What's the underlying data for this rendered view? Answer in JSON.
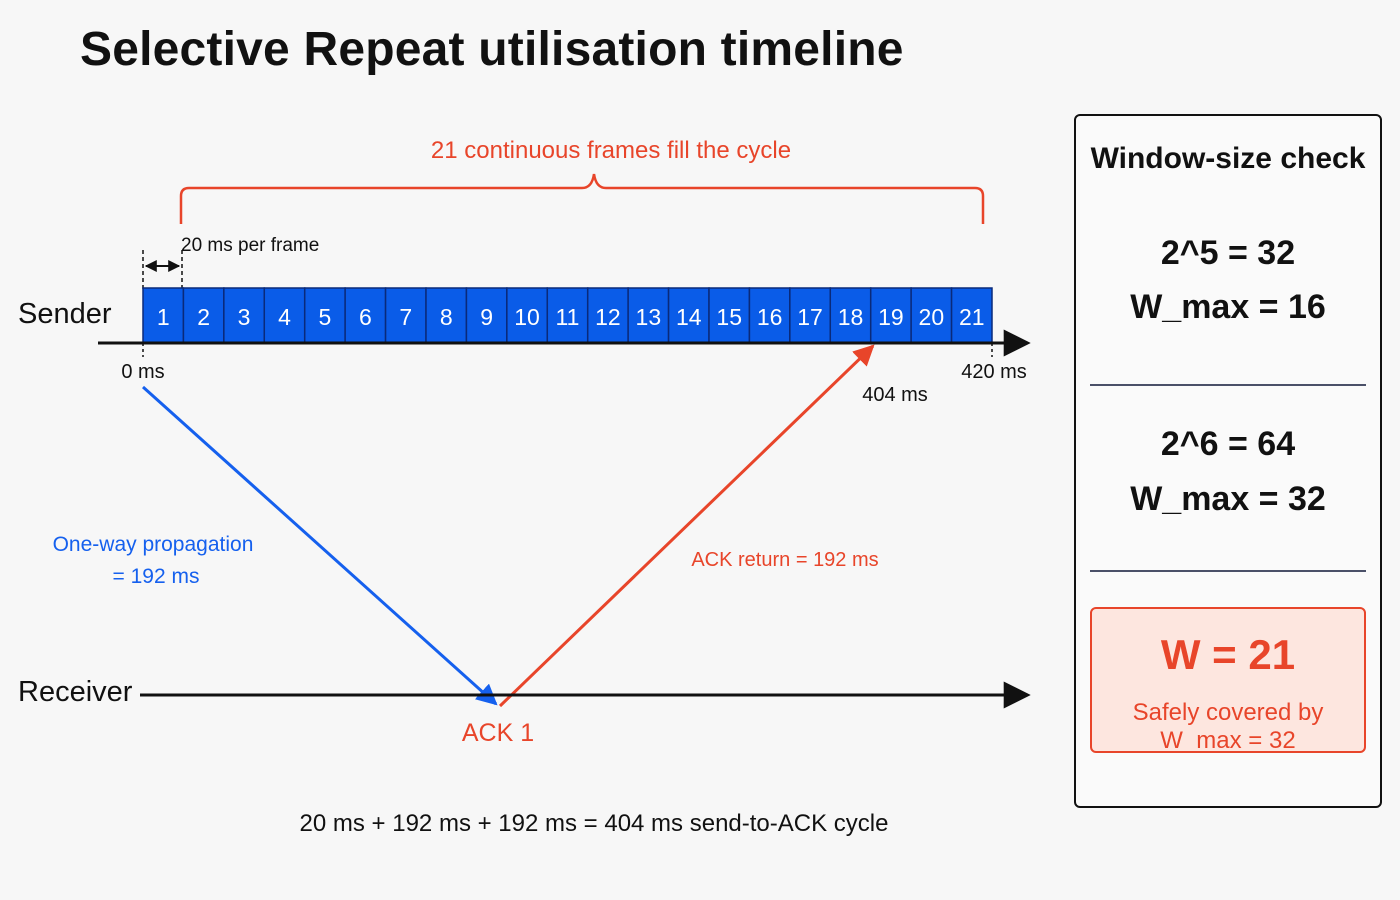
{
  "title": "Selective Repeat utilisation timeline",
  "colors": {
    "frame_fill": "#0a5ce8",
    "frame_border": "#0a2a7a",
    "propagation": "#1560ee",
    "ack": "#e8452a",
    "text": "#111111",
    "result_bg": "#fde6df"
  },
  "labels": {
    "brace": "21 continuous frames fill the cycle",
    "frame_time": "20 ms per frame",
    "sender": "Sender",
    "receiver": "Receiver",
    "t0": "0 ms",
    "t420": "420 ms",
    "t404": "404 ms",
    "propagation_line1": "One-way propagation",
    "propagation_line2": "= 192 ms",
    "ack_return": "ACK return = 192 ms",
    "ack1": "ACK 1",
    "cycle": "20 ms + 192 ms + 192 ms = 404 ms send-to-ACK cycle"
  },
  "frames": [
    "1",
    "2",
    "3",
    "4",
    "5",
    "6",
    "7",
    "8",
    "9",
    "10",
    "11",
    "12",
    "13",
    "14",
    "15",
    "16",
    "17",
    "18",
    "19",
    "20",
    "21"
  ],
  "panel": {
    "title": "Window-size check",
    "check1_line1": "2^5 = 32",
    "check1_line2": "W_max = 16",
    "check2_line1": "2^6 = 64",
    "check2_line2": "W_max = 32",
    "result_main": "W = 21",
    "result_sub": "Safely covered by W_max = 32"
  }
}
